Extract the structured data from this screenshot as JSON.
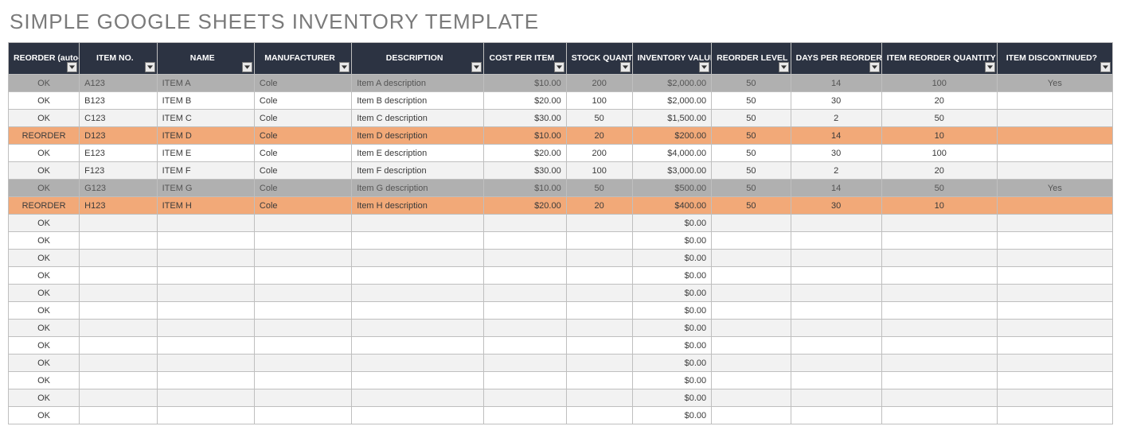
{
  "title": "SIMPLE GOOGLE SHEETS INVENTORY TEMPLATE",
  "colors": {
    "header_bg": "#2c3342",
    "header_fg": "#ffffff",
    "grid": "#bfbfbf",
    "row_alt": "#f2f2f2",
    "row_norm": "#ffffff",
    "row_discontinued": "#b0b0b0",
    "row_reorder": "#f2a978",
    "title_color": "#7a7a7a"
  },
  "columns": [
    {
      "key": "reorder",
      "label": "REORDER (auto-fill)",
      "width": 86,
      "align": "tc"
    },
    {
      "key": "itemno",
      "label": "ITEM NO.",
      "width": 94,
      "align": "tl"
    },
    {
      "key": "name",
      "label": "NAME",
      "width": 118,
      "align": "tl"
    },
    {
      "key": "mfr",
      "label": "MANUFACTURER",
      "width": 118,
      "align": "tl"
    },
    {
      "key": "desc",
      "label": "DESCRIPTION",
      "width": 160,
      "align": "tl"
    },
    {
      "key": "cost",
      "label": "COST PER ITEM",
      "width": 100,
      "align": "tr"
    },
    {
      "key": "stock",
      "label": "STOCK QUANTITY",
      "width": 80,
      "align": "tc"
    },
    {
      "key": "inv",
      "label": "INVENTORY VALUE",
      "width": 96,
      "align": "tr"
    },
    {
      "key": "rlevel",
      "label": "REORDER LEVEL",
      "width": 96,
      "align": "tc"
    },
    {
      "key": "days",
      "label": "DAYS PER REORDER",
      "width": 110,
      "align": "tc"
    },
    {
      "key": "rqty",
      "label": "ITEM REORDER QUANTITY",
      "width": 140,
      "align": "tc"
    },
    {
      "key": "disc",
      "label": "ITEM DISCONTINUED?",
      "width": 140,
      "align": "tc"
    }
  ],
  "rows": [
    {
      "status": "discontinued",
      "reorder": "OK",
      "itemno": "A123",
      "name": "ITEM A",
      "mfr": "Cole",
      "desc": "Item A description",
      "cost": "$10.00",
      "stock": "200",
      "inv": "$2,000.00",
      "rlevel": "50",
      "days": "14",
      "rqty": "100",
      "disc": "Yes"
    },
    {
      "status": "norm",
      "reorder": "OK",
      "itemno": "B123",
      "name": "ITEM B",
      "mfr": "Cole",
      "desc": "Item B description",
      "cost": "$20.00",
      "stock": "100",
      "inv": "$2,000.00",
      "rlevel": "50",
      "days": "30",
      "rqty": "20",
      "disc": ""
    },
    {
      "status": "alt",
      "reorder": "OK",
      "itemno": "C123",
      "name": "ITEM C",
      "mfr": "Cole",
      "desc": "Item C description",
      "cost": "$30.00",
      "stock": "50",
      "inv": "$1,500.00",
      "rlevel": "50",
      "days": "2",
      "rqty": "50",
      "disc": ""
    },
    {
      "status": "reorder",
      "reorder": "REORDER",
      "itemno": "D123",
      "name": "ITEM D",
      "mfr": "Cole",
      "desc": "Item D description",
      "cost": "$10.00",
      "stock": "20",
      "inv": "$200.00",
      "rlevel": "50",
      "days": "14",
      "rqty": "10",
      "disc": ""
    },
    {
      "status": "norm",
      "reorder": "OK",
      "itemno": "E123",
      "name": "ITEM E",
      "mfr": "Cole",
      "desc": "Item E description",
      "cost": "$20.00",
      "stock": "200",
      "inv": "$4,000.00",
      "rlevel": "50",
      "days": "30",
      "rqty": "100",
      "disc": ""
    },
    {
      "status": "alt",
      "reorder": "OK",
      "itemno": "F123",
      "name": "ITEM F",
      "mfr": "Cole",
      "desc": "Item F description",
      "cost": "$30.00",
      "stock": "100",
      "inv": "$3,000.00",
      "rlevel": "50",
      "days": "2",
      "rqty": "20",
      "disc": ""
    },
    {
      "status": "discontinued",
      "reorder": "OK",
      "itemno": "G123",
      "name": "ITEM G",
      "mfr": "Cole",
      "desc": "Item G description",
      "cost": "$10.00",
      "stock": "50",
      "inv": "$500.00",
      "rlevel": "50",
      "days": "14",
      "rqty": "50",
      "disc": "Yes"
    },
    {
      "status": "reorder",
      "reorder": "REORDER",
      "itemno": "H123",
      "name": "ITEM H",
      "mfr": "Cole",
      "desc": "Item H description",
      "cost": "$20.00",
      "stock": "20",
      "inv": "$400.00",
      "rlevel": "50",
      "days": "30",
      "rqty": "10",
      "disc": ""
    },
    {
      "status": "alt",
      "reorder": "OK",
      "itemno": "",
      "name": "",
      "mfr": "",
      "desc": "",
      "cost": "",
      "stock": "",
      "inv": "$0.00",
      "rlevel": "",
      "days": "",
      "rqty": "",
      "disc": ""
    },
    {
      "status": "norm",
      "reorder": "OK",
      "itemno": "",
      "name": "",
      "mfr": "",
      "desc": "",
      "cost": "",
      "stock": "",
      "inv": "$0.00",
      "rlevel": "",
      "days": "",
      "rqty": "",
      "disc": ""
    },
    {
      "status": "alt",
      "reorder": "OK",
      "itemno": "",
      "name": "",
      "mfr": "",
      "desc": "",
      "cost": "",
      "stock": "",
      "inv": "$0.00",
      "rlevel": "",
      "days": "",
      "rqty": "",
      "disc": ""
    },
    {
      "status": "norm",
      "reorder": "OK",
      "itemno": "",
      "name": "",
      "mfr": "",
      "desc": "",
      "cost": "",
      "stock": "",
      "inv": "$0.00",
      "rlevel": "",
      "days": "",
      "rqty": "",
      "disc": ""
    },
    {
      "status": "alt",
      "reorder": "OK",
      "itemno": "",
      "name": "",
      "mfr": "",
      "desc": "",
      "cost": "",
      "stock": "",
      "inv": "$0.00",
      "rlevel": "",
      "days": "",
      "rqty": "",
      "disc": ""
    },
    {
      "status": "norm",
      "reorder": "OK",
      "itemno": "",
      "name": "",
      "mfr": "",
      "desc": "",
      "cost": "",
      "stock": "",
      "inv": "$0.00",
      "rlevel": "",
      "days": "",
      "rqty": "",
      "disc": ""
    },
    {
      "status": "alt",
      "reorder": "OK",
      "itemno": "",
      "name": "",
      "mfr": "",
      "desc": "",
      "cost": "",
      "stock": "",
      "inv": "$0.00",
      "rlevel": "",
      "days": "",
      "rqty": "",
      "disc": ""
    },
    {
      "status": "norm",
      "reorder": "OK",
      "itemno": "",
      "name": "",
      "mfr": "",
      "desc": "",
      "cost": "",
      "stock": "",
      "inv": "$0.00",
      "rlevel": "",
      "days": "",
      "rqty": "",
      "disc": ""
    },
    {
      "status": "alt",
      "reorder": "OK",
      "itemno": "",
      "name": "",
      "mfr": "",
      "desc": "",
      "cost": "",
      "stock": "",
      "inv": "$0.00",
      "rlevel": "",
      "days": "",
      "rqty": "",
      "disc": ""
    },
    {
      "status": "norm",
      "reorder": "OK",
      "itemno": "",
      "name": "",
      "mfr": "",
      "desc": "",
      "cost": "",
      "stock": "",
      "inv": "$0.00",
      "rlevel": "",
      "days": "",
      "rqty": "",
      "disc": ""
    },
    {
      "status": "alt",
      "reorder": "OK",
      "itemno": "",
      "name": "",
      "mfr": "",
      "desc": "",
      "cost": "",
      "stock": "",
      "inv": "$0.00",
      "rlevel": "",
      "days": "",
      "rqty": "",
      "disc": ""
    },
    {
      "status": "norm",
      "reorder": "OK",
      "itemno": "",
      "name": "",
      "mfr": "",
      "desc": "",
      "cost": "",
      "stock": "",
      "inv": "$0.00",
      "rlevel": "",
      "days": "",
      "rqty": "",
      "disc": ""
    }
  ]
}
